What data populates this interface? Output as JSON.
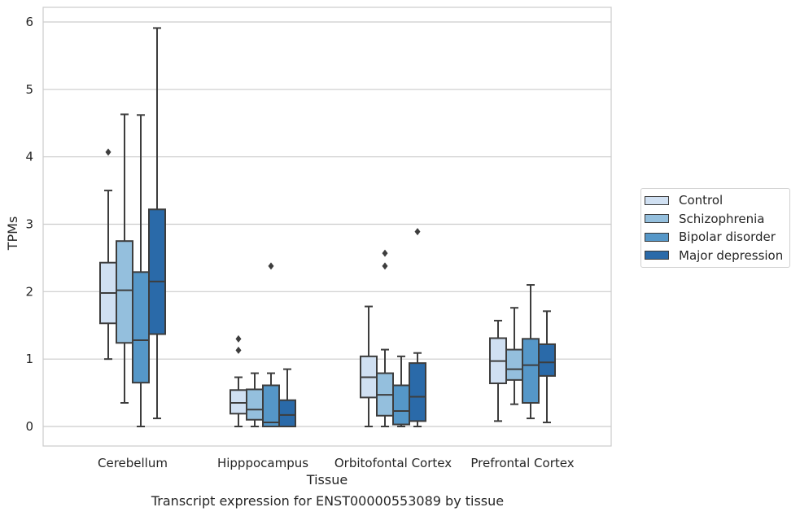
{
  "chart_data": {
    "type": "box",
    "title": "",
    "caption": "Transcript expression for ENST00000553089 by tissue",
    "xlabel": "Tissue",
    "ylabel": "TPMs",
    "ylim": [
      -0.28,
      6.2
    ],
    "yticks": [
      0,
      1,
      2,
      3,
      4,
      5,
      6
    ],
    "grid": true,
    "legend_position": "right",
    "categories": [
      "Cerebellum",
      "Hipppocampus",
      "Orbitofontal Cortex",
      "Prefrontal Cortex"
    ],
    "series": [
      {
        "name": "Control",
        "color": "#d0e0f2",
        "boxes": [
          {
            "whisker_low": 1.0,
            "q1": 1.53,
            "median": 1.98,
            "q3": 2.43,
            "whisker_high": 3.5,
            "outliers": [
              4.07
            ]
          },
          {
            "whisker_low": 0.0,
            "q1": 0.19,
            "median": 0.35,
            "q3": 0.54,
            "whisker_high": 0.73,
            "outliers": [
              1.13,
              1.3
            ]
          },
          {
            "whisker_low": 0.0,
            "q1": 0.43,
            "median": 0.73,
            "q3": 1.04,
            "whisker_high": 1.78,
            "outliers": []
          },
          {
            "whisker_low": 0.08,
            "q1": 0.64,
            "median": 0.97,
            "q3": 1.31,
            "whisker_high": 1.57,
            "outliers": []
          }
        ]
      },
      {
        "name": "Schizophrenia",
        "color": "#94bfdd",
        "boxes": [
          {
            "whisker_low": 0.35,
            "q1": 1.24,
            "median": 2.02,
            "q3": 2.75,
            "whisker_high": 4.63,
            "outliers": []
          },
          {
            "whisker_low": 0.0,
            "q1": 0.1,
            "median": 0.25,
            "q3": 0.55,
            "whisker_high": 0.79,
            "outliers": []
          },
          {
            "whisker_low": 0.0,
            "q1": 0.16,
            "median": 0.47,
            "q3": 0.79,
            "whisker_high": 1.14,
            "outliers": [
              2.38,
              2.57
            ]
          },
          {
            "whisker_low": 0.33,
            "q1": 0.69,
            "median": 0.85,
            "q3": 1.14,
            "whisker_high": 1.76,
            "outliers": []
          }
        ]
      },
      {
        "name": "Bipolar disorder",
        "color": "#5597c8",
        "boxes": [
          {
            "whisker_low": 0.0,
            "q1": 0.65,
            "median": 1.28,
            "q3": 2.29,
            "whisker_high": 4.62,
            "outliers": []
          },
          {
            "whisker_low": 0.0,
            "q1": 0.0,
            "median": 0.06,
            "q3": 0.61,
            "whisker_high": 0.79,
            "outliers": [
              2.38
            ]
          },
          {
            "whisker_low": 0.0,
            "q1": 0.03,
            "median": 0.23,
            "q3": 0.61,
            "whisker_high": 1.04,
            "outliers": []
          },
          {
            "whisker_low": 0.12,
            "q1": 0.35,
            "median": 0.91,
            "q3": 1.3,
            "whisker_high": 2.1,
            "outliers": []
          }
        ]
      },
      {
        "name": "Major depression",
        "color": "#2a6aa9",
        "boxes": [
          {
            "whisker_low": 0.12,
            "q1": 1.37,
            "median": 2.15,
            "q3": 3.22,
            "whisker_high": 5.91,
            "outliers": []
          },
          {
            "whisker_low": 0.0,
            "q1": 0.0,
            "median": 0.17,
            "q3": 0.39,
            "whisker_high": 0.85,
            "outliers": []
          },
          {
            "whisker_low": 0.0,
            "q1": 0.08,
            "median": 0.44,
            "q3": 0.94,
            "whisker_high": 1.09,
            "outliers": [
              2.89
            ]
          },
          {
            "whisker_low": 0.06,
            "q1": 0.75,
            "median": 0.95,
            "q3": 1.22,
            "whisker_high": 1.71,
            "outliers": []
          }
        ]
      }
    ]
  }
}
